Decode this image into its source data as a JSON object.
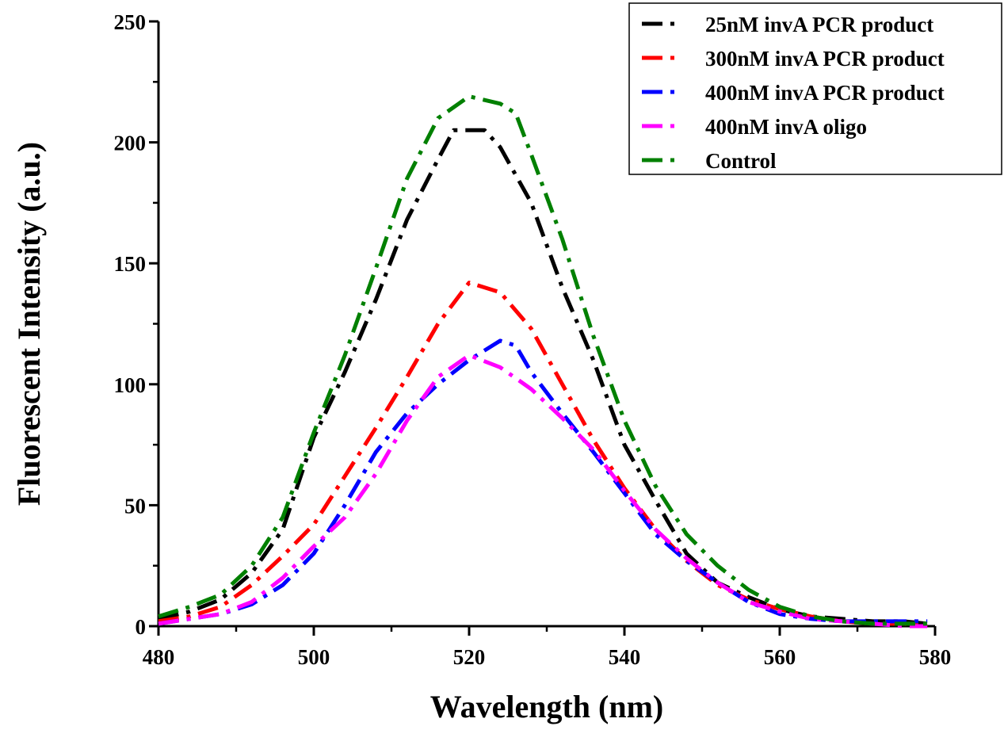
{
  "chart_data": {
    "type": "line",
    "title": "",
    "xlabel": "Wavelength (nm)",
    "ylabel": "Fluorescent Intensity (a.u.)",
    "xlim": [
      480,
      580
    ],
    "ylim": [
      0,
      250
    ],
    "xticks": [
      480,
      500,
      520,
      540,
      560,
      580
    ],
    "yticks": [
      0,
      50,
      100,
      150,
      200,
      250
    ],
    "grid": false,
    "legend_position": "top-right",
    "series": [
      {
        "name": "25nM invA PCR product",
        "color": "#000000",
        "x": [
          480,
          484,
          488,
          492,
          496,
          500,
          504,
          508,
          512,
          516,
          518,
          520,
          522,
          524,
          528,
          532,
          536,
          540,
          544,
          548,
          552,
          556,
          560,
          564,
          568,
          572,
          576,
          579
        ],
        "y": [
          3,
          6,
          11,
          22,
          40,
          78,
          105,
          135,
          168,
          193,
          205,
          205,
          205,
          198,
          175,
          140,
          110,
          75,
          52,
          30,
          18,
          12,
          7,
          4,
          3,
          2,
          2,
          1
        ]
      },
      {
        "name": "300nM invA PCR product",
        "color": "#ff0000",
        "x": [
          480,
          484,
          488,
          492,
          496,
          500,
          504,
          508,
          512,
          516,
          520,
          524,
          528,
          532,
          536,
          540,
          544,
          548,
          552,
          556,
          560,
          564,
          568,
          572,
          576,
          579
        ],
        "y": [
          2,
          4,
          8,
          17,
          29,
          42,
          62,
          82,
          103,
          125,
          142,
          138,
          123,
          100,
          77,
          57,
          40,
          27,
          17,
          11,
          7,
          4,
          2,
          1,
          1,
          0
        ]
      },
      {
        "name": "400nM invA PCR product",
        "color": "#0000ff",
        "x": [
          480,
          484,
          488,
          492,
          496,
          500,
          504,
          508,
          512,
          516,
          520,
          524,
          526,
          528,
          532,
          536,
          540,
          544,
          548,
          552,
          556,
          560,
          564,
          568,
          572,
          576,
          579
        ],
        "y": [
          1,
          3,
          5,
          9,
          17,
          30,
          50,
          72,
          88,
          100,
          110,
          118,
          116,
          105,
          88,
          72,
          55,
          38,
          27,
          18,
          10,
          5,
          3,
          2,
          2,
          2,
          2
        ]
      },
      {
        "name": "400nM invA oligo",
        "color": "#ff00ff",
        "x": [
          480,
          484,
          488,
          492,
          496,
          500,
          504,
          508,
          512,
          516,
          520,
          524,
          528,
          532,
          536,
          540,
          544,
          548,
          552,
          556,
          560,
          564,
          568,
          572,
          576,
          579
        ],
        "y": [
          1,
          3,
          5,
          10,
          20,
          33,
          45,
          63,
          85,
          103,
          112,
          107,
          98,
          86,
          73,
          56,
          40,
          28,
          18,
          10,
          6,
          3,
          2,
          1,
          0,
          0
        ]
      },
      {
        "name": "Control",
        "color": "#008000",
        "x": [
          480,
          484,
          488,
          492,
          496,
          500,
          504,
          508,
          512,
          516,
          520,
          524,
          526,
          528,
          532,
          536,
          540,
          544,
          548,
          552,
          556,
          560,
          564,
          568,
          572,
          576,
          579
        ],
        "y": [
          4,
          8,
          13,
          25,
          45,
          80,
          112,
          148,
          185,
          210,
          219,
          216,
          212,
          195,
          160,
          120,
          85,
          58,
          38,
          25,
          15,
          8,
          4,
          2,
          1,
          1,
          1
        ]
      }
    ]
  }
}
